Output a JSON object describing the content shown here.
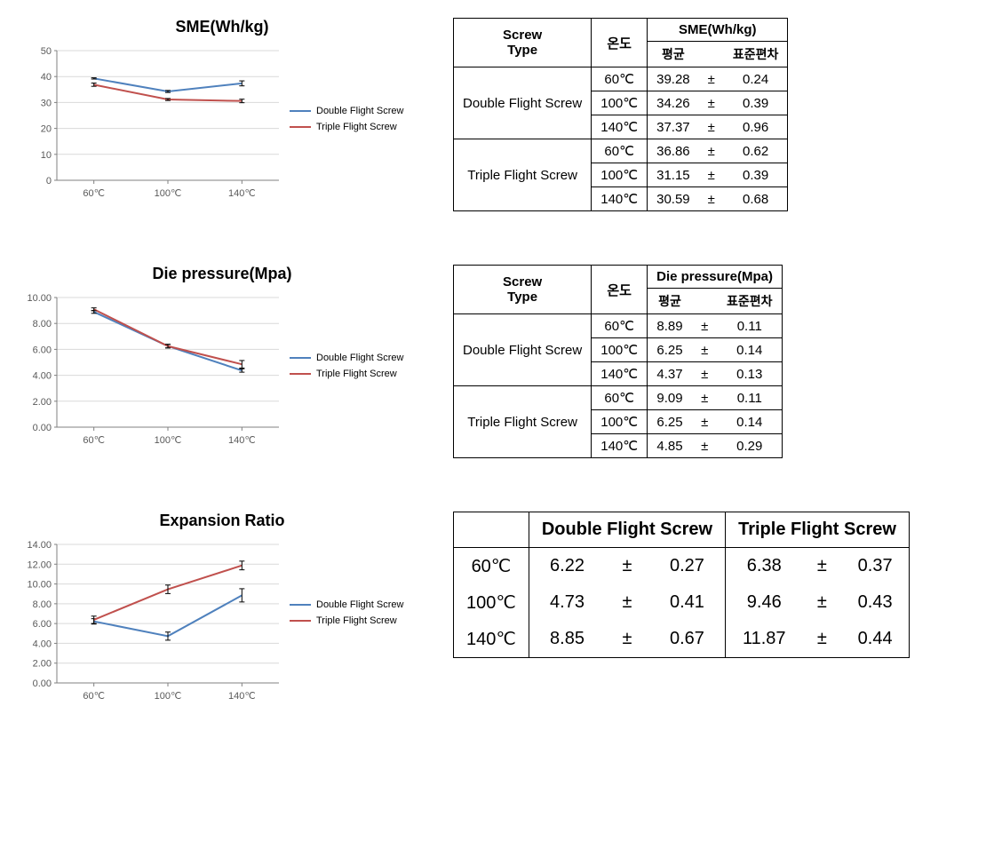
{
  "colors": {
    "series_double": "#4f81bd",
    "series_triple": "#c0504d",
    "axis": "#808080",
    "grid": "#d9d9d9",
    "tick_text": "#595959",
    "bg": "#ffffff"
  },
  "categories": [
    "60℃",
    "100℃",
    "140℃"
  ],
  "legend": {
    "double": "Double Flight Screw",
    "triple": "Triple Flight Screw"
  },
  "sme": {
    "title": "SME(Wh/kg)",
    "type": "line",
    "ylim": [
      0,
      50
    ],
    "ytick_step": 10,
    "series": {
      "double": {
        "values": [
          39.28,
          34.26,
          37.37
        ],
        "errors": [
          0.24,
          0.39,
          0.96
        ]
      },
      "triple": {
        "values": [
          36.86,
          31.15,
          30.59
        ],
        "errors": [
          0.62,
          0.39,
          0.68
        ]
      }
    },
    "table": {
      "col_screw": "Screw\nType",
      "col_temp": "온도",
      "col_metric": "SME(Wh/kg)",
      "col_mean": "평균",
      "col_sd": "표준편차",
      "rows": [
        {
          "screw": "Double Flight Screw",
          "temp": "60℃",
          "mean": "39.28",
          "pm": "±",
          "sd": "0.24"
        },
        {
          "screw": "Double Flight Screw",
          "temp": "100℃",
          "mean": "34.26",
          "pm": "±",
          "sd": "0.39"
        },
        {
          "screw": "Double Flight Screw",
          "temp": "140℃",
          "mean": "37.37",
          "pm": "±",
          "sd": "0.96"
        },
        {
          "screw": "Triple Flight Screw",
          "temp": "60℃",
          "mean": "36.86",
          "pm": "±",
          "sd": "0.62"
        },
        {
          "screw": "Triple Flight Screw",
          "temp": "100℃",
          "mean": "31.15",
          "pm": "±",
          "sd": "0.39"
        },
        {
          "screw": "Triple Flight Screw",
          "temp": "140℃",
          "mean": "30.59",
          "pm": "±",
          "sd": "0.68"
        }
      ]
    }
  },
  "die": {
    "title": "Die pressure(Mpa)",
    "type": "line",
    "ylim": [
      0,
      10
    ],
    "ytick_step": 2,
    "y_decimals": 2,
    "series": {
      "double": {
        "values": [
          8.89,
          6.25,
          4.37
        ],
        "errors": [
          0.11,
          0.14,
          0.13
        ]
      },
      "triple": {
        "values": [
          9.09,
          6.25,
          4.85
        ],
        "errors": [
          0.11,
          0.14,
          0.29
        ]
      }
    },
    "table": {
      "col_screw": "Screw\nType",
      "col_temp": "온도",
      "col_metric": "Die pressure(Mpa)",
      "col_mean": "평균",
      "col_sd": "표준편차",
      "rows": [
        {
          "screw": "Double Flight Screw",
          "temp": "60℃",
          "mean": "8.89",
          "pm": "±",
          "sd": "0.11"
        },
        {
          "screw": "Double Flight Screw",
          "temp": "100℃",
          "mean": "6.25",
          "pm": "±",
          "sd": "0.14"
        },
        {
          "screw": "Double Flight Screw",
          "temp": "140℃",
          "mean": "4.37",
          "pm": "±",
          "sd": "0.13"
        },
        {
          "screw": "Triple Flight Screw",
          "temp": "60℃",
          "mean": "9.09",
          "pm": "±",
          "sd": "0.11"
        },
        {
          "screw": "Triple Flight Screw",
          "temp": "100℃",
          "mean": "6.25",
          "pm": "±",
          "sd": "0.14"
        },
        {
          "screw": "Triple Flight Screw",
          "temp": "140℃",
          "mean": "4.85",
          "pm": "±",
          "sd": "0.29"
        }
      ]
    }
  },
  "exp": {
    "title": "Expansion Ratio",
    "type": "line",
    "ylim": [
      0,
      14
    ],
    "ytick_step": 2,
    "y_decimals": 2,
    "series": {
      "double": {
        "values": [
          6.22,
          4.73,
          8.85
        ],
        "errors": [
          0.27,
          0.41,
          0.67
        ]
      },
      "triple": {
        "values": [
          6.38,
          9.46,
          11.87
        ],
        "errors": [
          0.37,
          0.43,
          0.44
        ]
      }
    },
    "table": {
      "col_double": "Double Flight Screw",
      "col_triple": "Triple Flight Screw",
      "rows": [
        {
          "temp": "60℃",
          "d_mean": "6.22",
          "pm": "±",
          "d_sd": "0.27",
          "t_mean": "6.38",
          "t_sd": "0.37"
        },
        {
          "temp": "100℃",
          "d_mean": "4.73",
          "pm": "±",
          "d_sd": "0.41",
          "t_mean": "9.46",
          "t_sd": "0.43"
        },
        {
          "temp": "140℃",
          "d_mean": "8.85",
          "pm": "±",
          "d_sd": "0.67",
          "t_mean": "11.87",
          "t_sd": "0.44"
        }
      ]
    }
  }
}
